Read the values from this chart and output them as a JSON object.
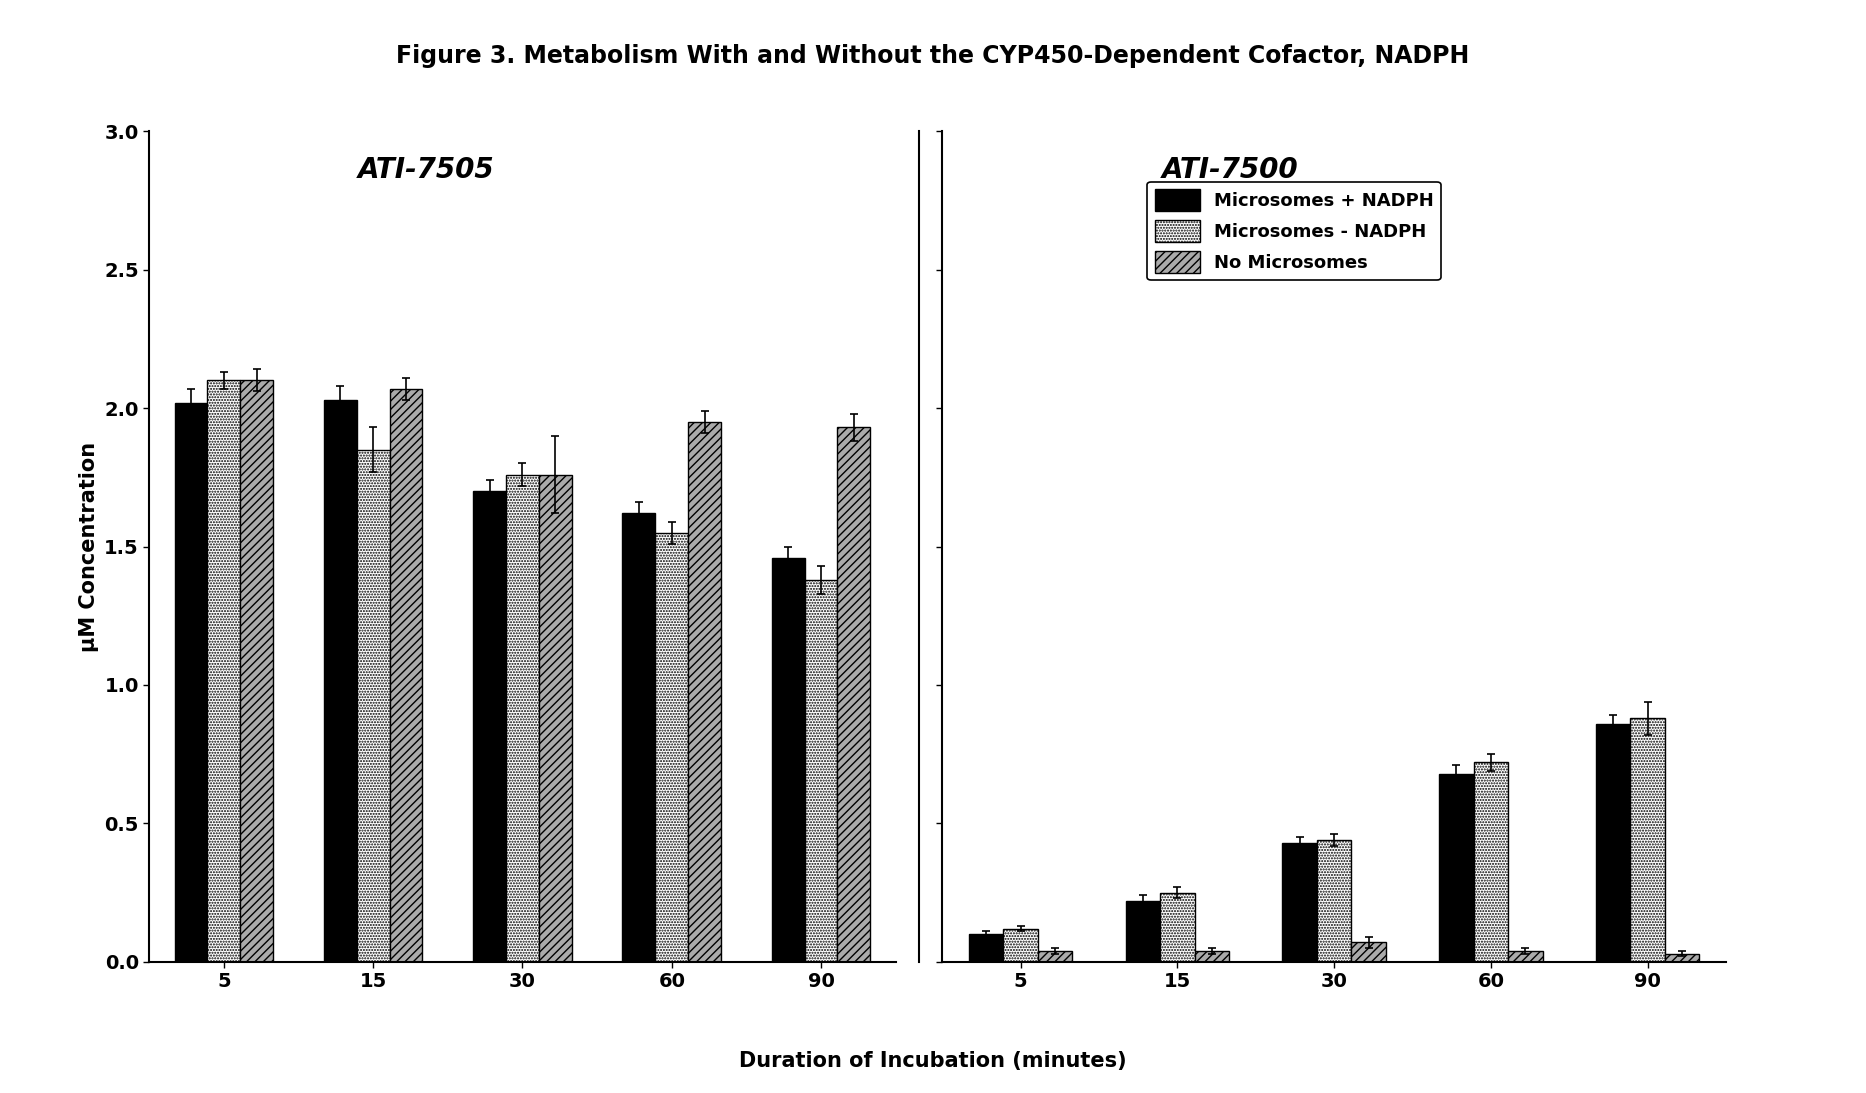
{
  "title": "Figure 3. Metabolism With and Without the CYP450-Dependent Cofactor, NADPH",
  "xlabel": "Duration of Incubation (minutes)",
  "ylabel": "μM Concentration",
  "categories": [
    5,
    15,
    30,
    60,
    90
  ],
  "ylim": [
    0,
    3.0
  ],
  "yticks": [
    0.0,
    0.5,
    1.0,
    1.5,
    2.0,
    2.5,
    3.0
  ],
  "subplot1_label": "ATI-7505",
  "subplot2_label": "ATI-7500",
  "legend_labels": [
    "Microsomes + NADPH",
    "Microsomes - NADPH",
    "No Microsomes"
  ],
  "bar_width": 0.22,
  "ati7505": {
    "microsomes_nadph": [
      2.02,
      2.03,
      1.7,
      1.62,
      1.46
    ],
    "microsomes_no_nadph": [
      2.1,
      1.85,
      1.76,
      1.55,
      1.38
    ],
    "no_microsomes": [
      2.1,
      2.07,
      1.76,
      1.95,
      1.93
    ],
    "err_nadph": [
      0.05,
      0.05,
      0.04,
      0.04,
      0.04
    ],
    "err_no_nadph": [
      0.03,
      0.08,
      0.04,
      0.04,
      0.05
    ],
    "err_no_micro": [
      0.04,
      0.04,
      0.14,
      0.04,
      0.05
    ]
  },
  "ati7500": {
    "microsomes_nadph": [
      0.1,
      0.22,
      0.43,
      0.68,
      0.86
    ],
    "microsomes_no_nadph": [
      0.12,
      0.25,
      0.44,
      0.72,
      0.88
    ],
    "no_microsomes": [
      0.04,
      0.04,
      0.07,
      0.04,
      0.03
    ],
    "err_nadph": [
      0.01,
      0.02,
      0.02,
      0.03,
      0.03
    ],
    "err_no_nadph": [
      0.01,
      0.02,
      0.02,
      0.03,
      0.06
    ],
    "err_no_micro": [
      0.01,
      0.01,
      0.02,
      0.01,
      0.01
    ]
  },
  "background_color": "#ffffff",
  "title_fontsize": 17,
  "label_fontsize": 15,
  "tick_fontsize": 14,
  "legend_fontsize": 13,
  "subplot_label_fontsize": 20
}
